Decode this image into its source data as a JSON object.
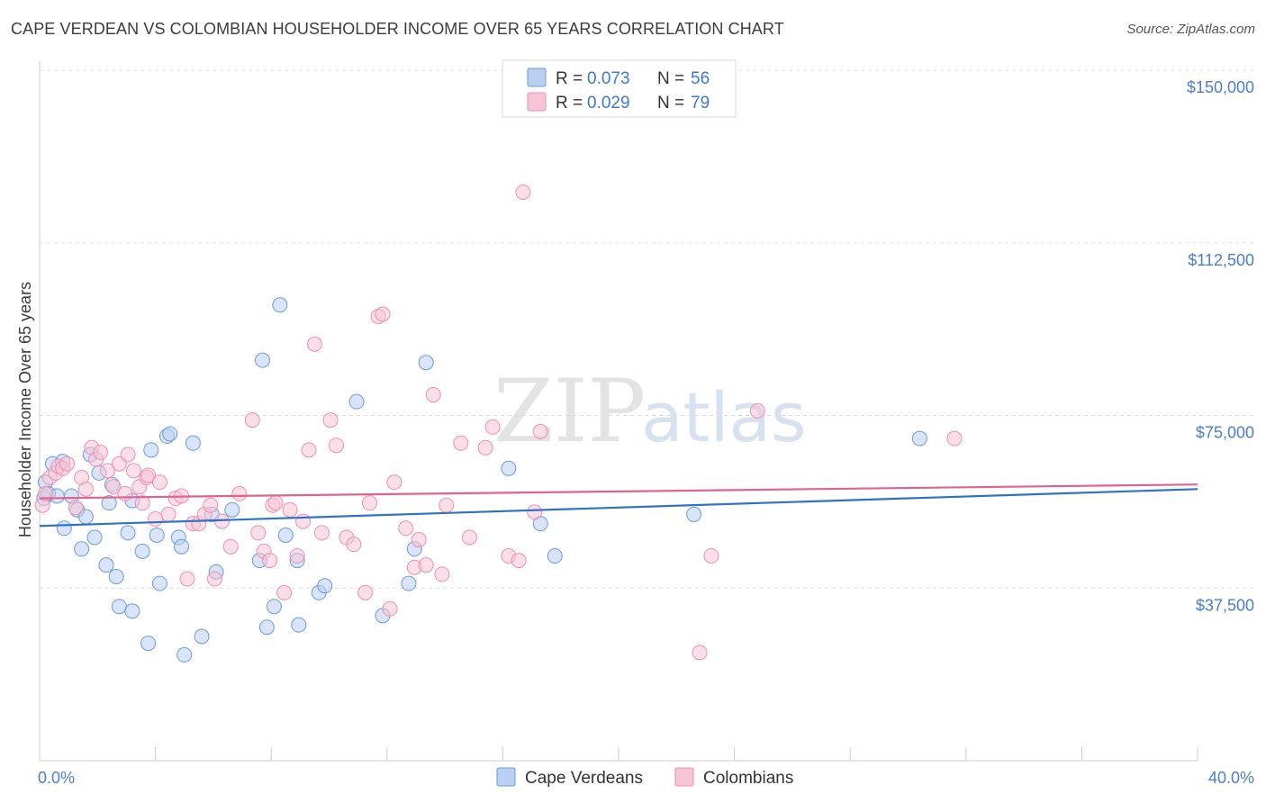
{
  "title": "CAPE VERDEAN VS COLOMBIAN HOUSEHOLDER INCOME OVER 65 YEARS CORRELATION CHART",
  "source": "Source: ZipAtlas.com",
  "watermark": {
    "zip": "ZIP",
    "atlas": "atlas"
  },
  "colors": {
    "blue": "#6b9bd8",
    "blue_fill": "#b9d0f0",
    "blue_line": "#2f72c8",
    "pink": "#ec8fb0",
    "pink_fill": "#f6c4d5",
    "pink_line": "#e0628e",
    "grid": "#dddddd"
  },
  "legend": {
    "r_label": "R =",
    "n_label": "N =",
    "rows": [
      {
        "r": "0.073",
        "n": "56"
      },
      {
        "r": "0.029",
        "n": "79"
      }
    ]
  },
  "chart_data": {
    "type": "scatter",
    "title": "CAPE VERDEAN VS COLOMBIAN HOUSEHOLDER INCOME OVER 65 YEARS CORRELATION CHART",
    "xlabel": "",
    "ylabel": "Householder Income Over 65 years",
    "xlim": [
      0,
      40
    ],
    "ylim": [
      0,
      150000
    ],
    "x_tick_labels": [
      "0.0%",
      "40.0%"
    ],
    "y_ticks": [
      {
        "value": 150000,
        "label": "$150,000"
      },
      {
        "value": 112500,
        "label": "$112,500"
      },
      {
        "value": 75000,
        "label": "$75,000"
      },
      {
        "value": 37500,
        "label": "$37,500"
      }
    ],
    "series": [
      {
        "name": "Cape Verdeans",
        "trend": {
          "x": [
            0,
            40
          ],
          "y": [
            51000,
            59000
          ]
        },
        "points": [
          [
            0.15,
            57000
          ],
          [
            0.2,
            60500
          ],
          [
            0.3,
            58000
          ],
          [
            0.45,
            64500
          ],
          [
            0.6,
            57500
          ],
          [
            0.8,
            65000
          ],
          [
            0.85,
            50500
          ],
          [
            1.1,
            57500
          ],
          [
            1.3,
            54500
          ],
          [
            1.45,
            46000
          ],
          [
            1.6,
            53000
          ],
          [
            1.75,
            66500
          ],
          [
            1.9,
            48500
          ],
          [
            2.05,
            62500
          ],
          [
            2.3,
            42500
          ],
          [
            2.4,
            56000
          ],
          [
            2.5,
            60000
          ],
          [
            2.65,
            40000
          ],
          [
            2.75,
            33500
          ],
          [
            3.05,
            49500
          ],
          [
            3.2,
            56500
          ],
          [
            3.2,
            32500
          ],
          [
            3.55,
            45500
          ],
          [
            3.75,
            25500
          ],
          [
            3.85,
            67500
          ],
          [
            4.05,
            49000
          ],
          [
            4.15,
            38500
          ],
          [
            4.4,
            70500
          ],
          [
            4.5,
            71000
          ],
          [
            4.8,
            48500
          ],
          [
            4.9,
            46500
          ],
          [
            5.0,
            23000
          ],
          [
            5.3,
            69000
          ],
          [
            5.6,
            27000
          ],
          [
            5.95,
            53500
          ],
          [
            6.1,
            41000
          ],
          [
            6.65,
            54500
          ],
          [
            7.6,
            43500
          ],
          [
            7.7,
            87000
          ],
          [
            7.85,
            29000
          ],
          [
            8.1,
            33500
          ],
          [
            8.3,
            99000
          ],
          [
            8.5,
            49000
          ],
          [
            8.9,
            43500
          ],
          [
            8.95,
            29500
          ],
          [
            9.65,
            36500
          ],
          [
            9.85,
            38000
          ],
          [
            10.95,
            78000
          ],
          [
            11.85,
            31500
          ],
          [
            12.75,
            38500
          ],
          [
            12.95,
            46000
          ],
          [
            13.35,
            86500
          ],
          [
            16.2,
            63500
          ],
          [
            17.3,
            51500
          ],
          [
            17.8,
            44500
          ],
          [
            22.6,
            53500
          ],
          [
            30.4,
            70000
          ]
        ]
      },
      {
        "name": "Colombians",
        "trend": {
          "x": [
            0,
            40
          ],
          "y": [
            57000,
            60000
          ]
        },
        "points": [
          [
            0.1,
            55500
          ],
          [
            0.2,
            58000
          ],
          [
            0.35,
            61500
          ],
          [
            0.55,
            62500
          ],
          [
            0.65,
            64000
          ],
          [
            0.8,
            63500
          ],
          [
            0.95,
            64500
          ],
          [
            1.25,
            55000
          ],
          [
            1.45,
            61500
          ],
          [
            1.6,
            59000
          ],
          [
            1.8,
            68000
          ],
          [
            1.95,
            65500
          ],
          [
            2.1,
            67000
          ],
          [
            2.35,
            63000
          ],
          [
            2.55,
            59500
          ],
          [
            2.75,
            64500
          ],
          [
            2.95,
            58000
          ],
          [
            3.05,
            66500
          ],
          [
            3.25,
            63000
          ],
          [
            3.45,
            59500
          ],
          [
            3.55,
            56000
          ],
          [
            3.7,
            61500
          ],
          [
            3.75,
            62000
          ],
          [
            4.0,
            52500
          ],
          [
            4.15,
            60500
          ],
          [
            4.45,
            53500
          ],
          [
            4.7,
            57000
          ],
          [
            4.9,
            57500
          ],
          [
            5.1,
            39500
          ],
          [
            5.3,
            51500
          ],
          [
            5.5,
            51500
          ],
          [
            5.7,
            53500
          ],
          [
            5.9,
            55500
          ],
          [
            6.05,
            39500
          ],
          [
            6.3,
            52000
          ],
          [
            6.6,
            46500
          ],
          [
            6.9,
            58000
          ],
          [
            7.35,
            74000
          ],
          [
            7.55,
            49500
          ],
          [
            7.75,
            45500
          ],
          [
            7.95,
            43500
          ],
          [
            8.05,
            55500
          ],
          [
            8.15,
            56000
          ],
          [
            8.45,
            36500
          ],
          [
            8.65,
            54500
          ],
          [
            8.9,
            44500
          ],
          [
            9.1,
            52000
          ],
          [
            9.3,
            67500
          ],
          [
            9.5,
            90500
          ],
          [
            9.75,
            49500
          ],
          [
            10.05,
            74000
          ],
          [
            10.25,
            68500
          ],
          [
            10.6,
            48500
          ],
          [
            10.85,
            47000
          ],
          [
            11.25,
            36500
          ],
          [
            11.4,
            56000
          ],
          [
            11.7,
            96500
          ],
          [
            11.85,
            97000
          ],
          [
            12.1,
            33000
          ],
          [
            12.25,
            60500
          ],
          [
            12.65,
            50500
          ],
          [
            12.95,
            42000
          ],
          [
            13.1,
            48000
          ],
          [
            13.35,
            42500
          ],
          [
            13.6,
            79500
          ],
          [
            13.9,
            40500
          ],
          [
            14.05,
            55500
          ],
          [
            14.55,
            69000
          ],
          [
            14.85,
            48500
          ],
          [
            15.4,
            68000
          ],
          [
            15.65,
            72500
          ],
          [
            16.2,
            44500
          ],
          [
            16.55,
            43500
          ],
          [
            16.7,
            123500
          ],
          [
            17.1,
            54000
          ],
          [
            17.3,
            71500
          ],
          [
            22.8,
            23500
          ],
          [
            23.2,
            44500
          ],
          [
            24.8,
            76000
          ],
          [
            31.6,
            70000
          ]
        ]
      }
    ]
  }
}
